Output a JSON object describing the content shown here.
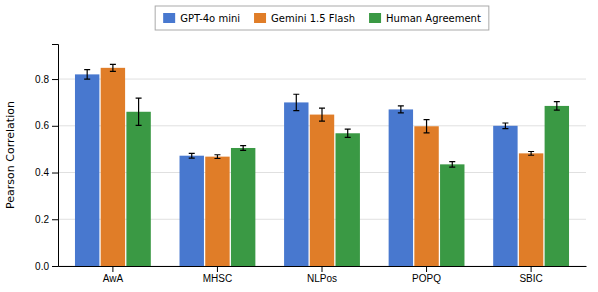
{
  "chart_data": {
    "type": "bar",
    "categories": [
      "AwA",
      "MHSC",
      "NLPos",
      "POPQ",
      "SBIC"
    ],
    "series": [
      {
        "name": "GPT-4o mini",
        "color": "#4878cf",
        "values": [
          0.82,
          0.472,
          0.7,
          0.67,
          0.6
        ],
        "errors": [
          0.02,
          0.01,
          0.035,
          0.015,
          0.012
        ]
      },
      {
        "name": "Gemini 1.5 Flash",
        "color": "#e07d28",
        "values": [
          0.848,
          0.468,
          0.648,
          0.598,
          0.482
        ],
        "errors": [
          0.015,
          0.008,
          0.028,
          0.028,
          0.008
        ]
      },
      {
        "name": "Human Agreement",
        "color": "#3a9944",
        "values": [
          0.66,
          0.505,
          0.568,
          0.435,
          0.685
        ],
        "errors": [
          0.058,
          0.01,
          0.018,
          0.012,
          0.018
        ]
      }
    ],
    "ylabel": "Pearson Correlation",
    "ylim": [
      0.0,
      0.95
    ],
    "yticks": [
      {
        "value": 0,
        "label": "0.0"
      },
      0.2,
      0.4,
      0.6,
      0.8
    ],
    "grid": true,
    "legend": "top"
  }
}
